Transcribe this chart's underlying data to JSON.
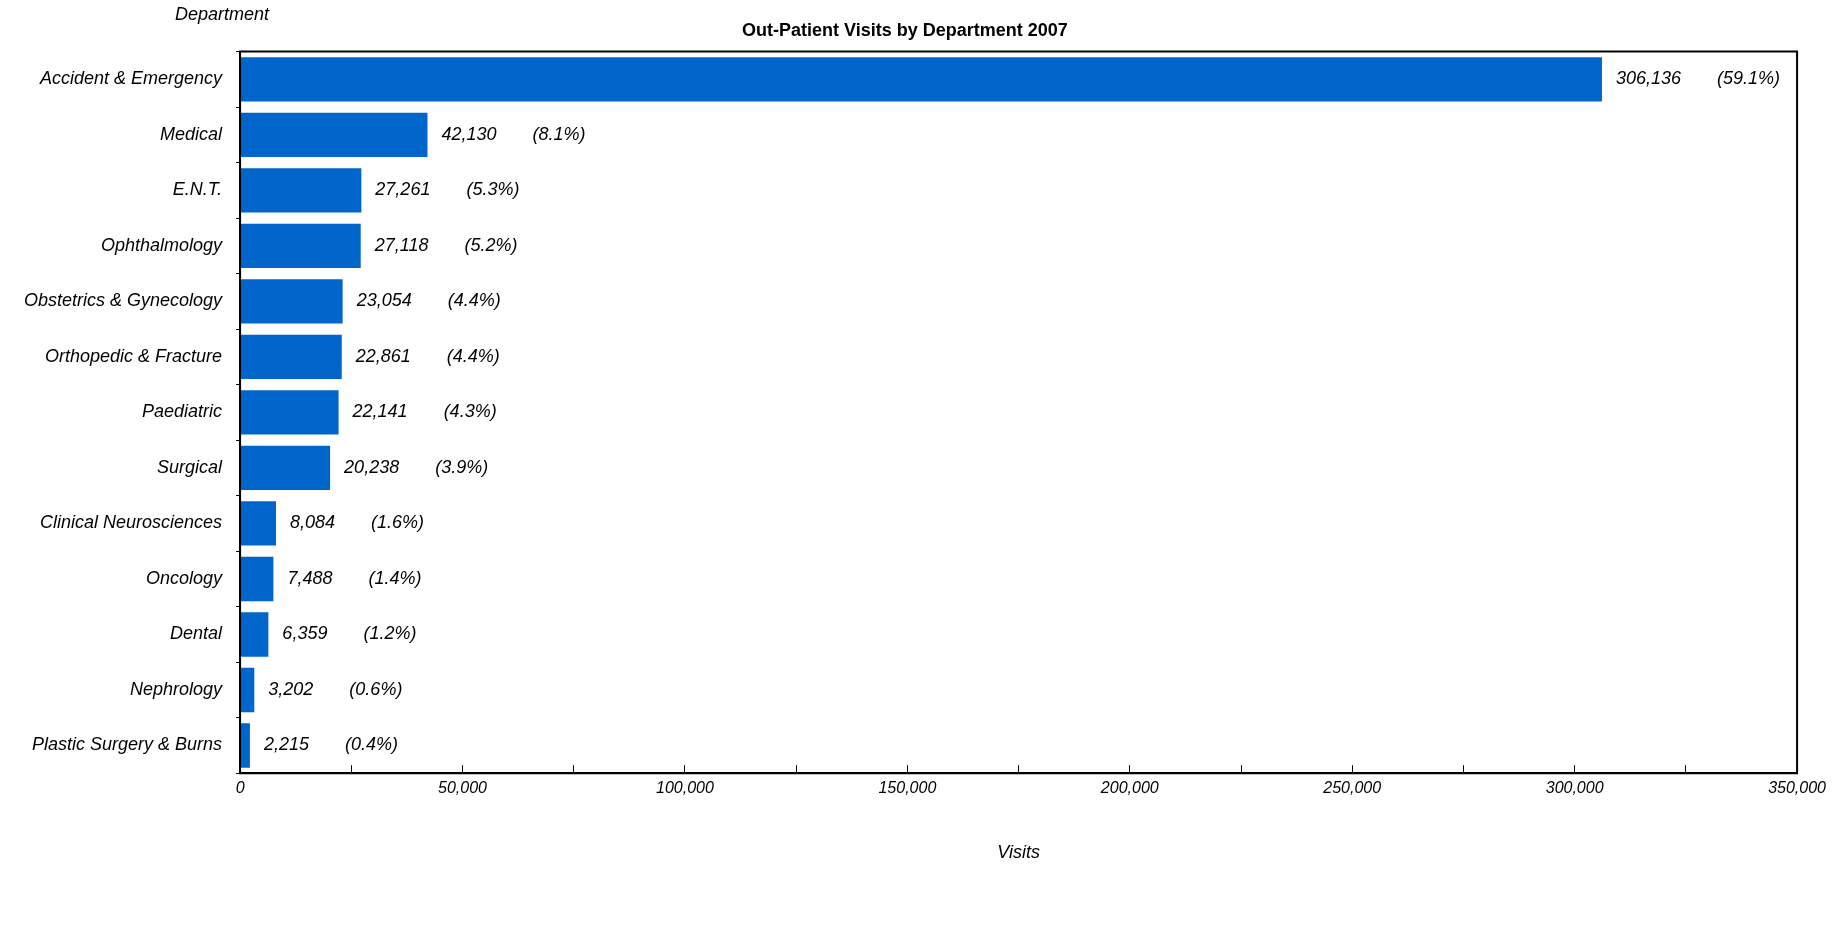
{
  "chart_data": {
    "type": "bar",
    "orientation": "horizontal",
    "title": "Out-Patient Visits by Department 2007",
    "xlabel": "Visits",
    "ylabel": "Department",
    "categories": [
      "Accident & Emergency",
      "Medical",
      "E.N.T.",
      "Ophthalmology",
      "Obstetrics & Gynecology",
      "Orthopedic & Fracture",
      "Paediatric",
      "Surgical",
      "Clinical Neurosciences",
      "Oncology",
      "Dental",
      "Nephrology",
      "Plastic Surgery & Burns"
    ],
    "values": [
      306136,
      42130,
      27261,
      27118,
      23054,
      22861,
      22141,
      20238,
      8084,
      7488,
      6359,
      3202,
      2215
    ],
    "value_labels": [
      "306,136    (59.1%)",
      "42,130    (8.1%)",
      "27,261    (5.3%)",
      "27,118    (5.2%)",
      "23,054    (4.4%)",
      "22,861    (4.4%)",
      "22,141    (4.3%)",
      "20,238    (3.9%)",
      "8,084    (1.6%)",
      "7,488    (1.4%)",
      "6,359    (1.2%)",
      "3,202    (0.6%)",
      "2,215    (0.4%)"
    ],
    "color": "#0066cc",
    "xlim": [
      0,
      350000
    ],
    "xticks": [
      0,
      {
        "value": 25000,
        "label": null
      },
      {
        "value": 50000,
        "label": "50,000"
      },
      {
        "value": 75000,
        "label": null
      },
      {
        "value": 100000,
        "label": "100,000"
      },
      {
        "value": 125000,
        "label": null
      },
      {
        "value": 150000,
        "label": "150,000"
      },
      {
        "value": 175000,
        "label": null
      },
      {
        "value": 200000,
        "label": "200,000"
      },
      {
        "value": 225000,
        "label": null
      },
      {
        "value": 250000,
        "label": "250,000"
      },
      {
        "value": 275000,
        "label": null
      },
      {
        "value": 300000,
        "label": "300,000"
      },
      {
        "value": 325000,
        "label": null
      },
      {
        "value": 350000,
        "label": "350,000"
      }
    ],
    "grid": false,
    "legend": false
  }
}
